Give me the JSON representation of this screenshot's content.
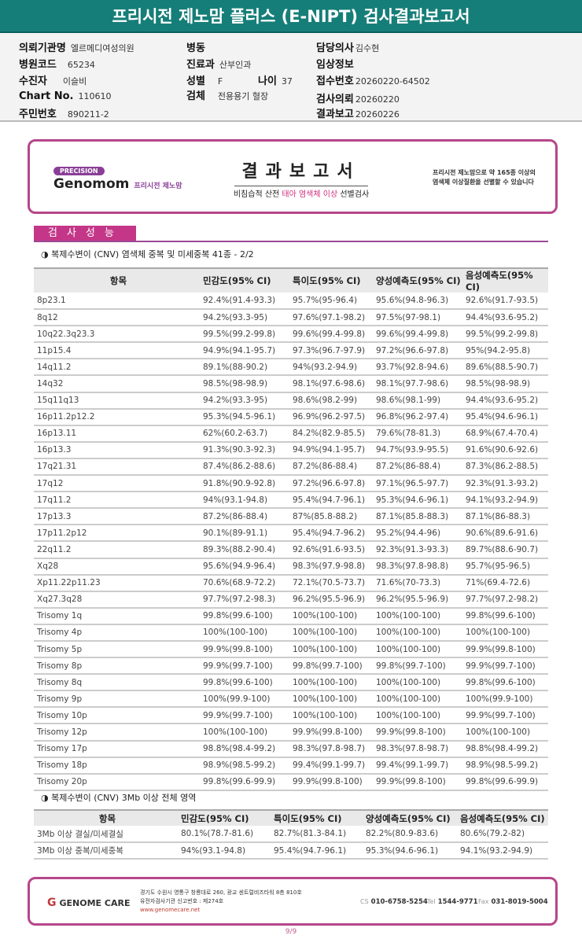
{
  "title": "프리시전 제노맘 플러스 (E-NIPT) 검사결과보고서",
  "info": {
    "institution": {
      "label": "의뢰기관명",
      "value": "엘르메디여성의원"
    },
    "hospital_code": {
      "label": "병원코드",
      "value": "65234"
    },
    "patient": {
      "label": "수진자",
      "value": "이슬비"
    },
    "chart_no": {
      "label": "Chart No.",
      "value": "110610"
    },
    "rrn": {
      "label": "주민번호",
      "value": "890211-2"
    },
    "ward": {
      "label": "병동",
      "value": ""
    },
    "department": {
      "label": "진료과",
      "value": "산부인과"
    },
    "sex": {
      "label": "성별",
      "value": "F"
    },
    "age": {
      "label": "나이",
      "value": "37"
    },
    "specimen": {
      "label": "검체",
      "value": "전용용기 혈장"
    },
    "doctor": {
      "label": "담당의사",
      "value": "김수현"
    },
    "clinical": {
      "label": "임상정보",
      "value": ""
    },
    "receipt_no": {
      "label": "접수번호",
      "value": "20260220-64502"
    },
    "request_date": {
      "label": "검사의뢰",
      "value": "20260220"
    },
    "report_date": {
      "label": "결과보고",
      "value": "20260226"
    }
  },
  "banner": {
    "precision": "PRECISION",
    "brand": "Genomom",
    "brand_sub": "프리시전 제노맘",
    "title": "결과보고서",
    "subtitle_pre": "비침습적 산전 ",
    "subtitle_em": "태아 염색체 이상",
    "subtitle_post": " 선별검사",
    "note_line1": "프리시전 제노맘으로 약 165종 이상의",
    "note_line2": "염색체 이상질환을 선별할 수 있습니다"
  },
  "section_title": "검사성능",
  "colors": {
    "teal": "#167e78",
    "magenta": "#c43788"
  },
  "table1": {
    "caption": "◑ 복제수변이 (CNV) 염색체 중복 및 미세중복 41종 - 2/2",
    "headers": [
      "항목",
      "민감도(95% CI)",
      "특이도(95% CI)",
      "양성예측도(95% CI)",
      "음성예측도(95% CI)"
    ],
    "rows": [
      [
        "8p23.1",
        "92.4%(91.4-93.3)",
        "95.7%(95-96.4)",
        "95.6%(94.8-96.3)",
        "92.6%(91.7-93.5)"
      ],
      [
        "8q12",
        "94.2%(93.3-95)",
        "97.6%(97.1-98.2)",
        "97.5%(97-98.1)",
        "94.4%(93.6-95.2)"
      ],
      [
        "10q22.3q23.3",
        "99.5%(99.2-99.8)",
        "99.6%(99.4-99.8)",
        "99.6%(99.4-99.8)",
        "99.5%(99.2-99.8)"
      ],
      [
        "11p15.4",
        "94.9%(94.1-95.7)",
        "97.3%(96.7-97.9)",
        "97.2%(96.6-97.8)",
        "95%(94.2-95.8)"
      ],
      [
        "14q11.2",
        "89.1%(88-90.2)",
        "94%(93.2-94.9)",
        "93.7%(92.8-94.6)",
        "89.6%(88.5-90.7)"
      ],
      [
        "14q32",
        "98.5%(98-98.9)",
        "98.1%(97.6-98.6)",
        "98.1%(97.7-98.6)",
        "98.5%(98-98.9)"
      ],
      [
        "15q11q13",
        "94.2%(93.3-95)",
        "98.6%(98.2-99)",
        "98.6%(98.1-99)",
        "94.4%(93.6-95.2)"
      ],
      [
        "16p11.2p12.2",
        "95.3%(94.5-96.1)",
        "96.9%(96.2-97.5)",
        "96.8%(96.2-97.4)",
        "95.4%(94.6-96.1)"
      ],
      [
        "16p13.11",
        "62%(60.2-63.7)",
        "84.2%(82.9-85.5)",
        "79.6%(78-81.3)",
        "68.9%(67.4-70.4)"
      ],
      [
        "16p13.3",
        "91.3%(90.3-92.3)",
        "94.9%(94.1-95.7)",
        "94.7%(93.9-95.5)",
        "91.6%(90.6-92.6)"
      ],
      [
        "17q21.31",
        "87.4%(86.2-88.6)",
        "87.2%(86-88.4)",
        "87.2%(86-88.4)",
        "87.3%(86.2-88.5)"
      ],
      [
        "17q12",
        "91.8%(90.9-92.8)",
        "97.2%(96.6-97.8)",
        "97.1%(96.5-97.7)",
        "92.3%(91.3-93.2)"
      ],
      [
        "17q11.2",
        "94%(93.1-94.8)",
        "95.4%(94.7-96.1)",
        "95.3%(94.6-96.1)",
        "94.1%(93.2-94.9)"
      ],
      [
        "17p13.3",
        "87.2%(86-88.4)",
        "87%(85.8-88.2)",
        "87.1%(85.8-88.3)",
        "87.1%(86-88.3)"
      ],
      [
        "17p11.2p12",
        "90.1%(89-91.1)",
        "95.4%(94.7-96.2)",
        "95.2%(94.4-96)",
        "90.6%(89.6-91.6)"
      ],
      [
        "22q11.2",
        "89.3%(88.2-90.4)",
        "92.6%(91.6-93.5)",
        "92.3%(91.3-93.3)",
        "89.7%(88.6-90.7)"
      ],
      [
        "Xq28",
        "95.6%(94.9-96.4)",
        "98.3%(97.9-98.8)",
        "98.3%(97.8-98.8)",
        "95.7%(95-96.5)"
      ],
      [
        "Xp11.22p11.23",
        "70.6%(68.9-72.2)",
        "72.1%(70.5-73.7)",
        "71.6%(70-73.3)",
        "71%(69.4-72.6)"
      ],
      [
        "Xq27.3q28",
        "97.7%(97.2-98.3)",
        "96.2%(95.5-96.9)",
        "96.2%(95.5-96.9)",
        "97.7%(97.2-98.2)"
      ],
      [
        "Trisomy 1q",
        "99.8%(99.6-100)",
        "100%(100-100)",
        "100%(100-100)",
        "99.8%(99.6-100)"
      ],
      [
        "Trisomy 4p",
        "100%(100-100)",
        "100%(100-100)",
        "100%(100-100)",
        "100%(100-100)"
      ],
      [
        "Trisomy 5p",
        "99.9%(99.8-100)",
        "100%(100-100)",
        "100%(100-100)",
        "99.9%(99.8-100)"
      ],
      [
        "Trisomy 8p",
        "99.9%(99.7-100)",
        "99.8%(99.7-100)",
        "99.8%(99.7-100)",
        "99.9%(99.7-100)"
      ],
      [
        "Trisomy 8q",
        "99.8%(99.6-100)",
        "100%(100-100)",
        "100%(100-100)",
        "99.8%(99.6-100)"
      ],
      [
        "Trisomy 9p",
        "100%(99.9-100)",
        "100%(100-100)",
        "100%(100-100)",
        "100%(99.9-100)"
      ],
      [
        "Trisomy 10p",
        "99.9%(99.7-100)",
        "100%(100-100)",
        "100%(100-100)",
        "99.9%(99.7-100)"
      ],
      [
        "Trisomy 12p",
        "100%(100-100)",
        "99.9%(99.8-100)",
        "99.9%(99.8-100)",
        "100%(100-100)"
      ],
      [
        "Trisomy 17p",
        "98.8%(98.4-99.2)",
        "98.3%(97.8-98.7)",
        "98.3%(97.8-98.7)",
        "98.8%(98.4-99.2)"
      ],
      [
        "Trisomy 18p",
        "98.9%(98.5-99.2)",
        "99.4%(99.1-99.7)",
        "99.4%(99.1-99.7)",
        "98.9%(98.5-99.2)"
      ],
      [
        "Trisomy 20p",
        "99.8%(99.6-99.9)",
        "99.9%(99.8-100)",
        "99.9%(99.8-100)",
        "99.8%(99.6-99.9)"
      ]
    ]
  },
  "table2": {
    "caption": "◑ 복제수변이 (CNV) 3Mb 이상 전체 영역",
    "headers": [
      "항목",
      "민감도(95% CI)",
      "특이도(95% CI)",
      "양성예측도(95% CI)",
      "음성예측도(95% CI)"
    ],
    "rows": [
      [
        "3Mb 이상 결실/미세결실",
        "80.1%(78.7-81.6)",
        "82.7%(81.3-84.1)",
        "82.2%(80.9-83.6)",
        "80.6%(79.2-82)"
      ],
      [
        "3Mb 이상 중복/미세중복",
        "94%(93.1-94.8)",
        "95.4%(94.7-96.1)",
        "95.3%(94.6-96.1)",
        "94.1%(93.2-94.9)"
      ]
    ]
  },
  "footer": {
    "logo": "GENOME CARE",
    "address": "경기도 수원시 영통구 창룡대로 260, 광교 센트럴비즈타워 8층 810호",
    "license": "유전자검사기관 신고번호 : 제274호",
    "url": "www.genomecare.net",
    "cs_label": "CS",
    "cs": "010-6758-5254",
    "tel_label": "Tel",
    "tel": "1544-9771",
    "fax_label": "Fax",
    "fax": "031-8019-5004"
  },
  "page": "9/9"
}
